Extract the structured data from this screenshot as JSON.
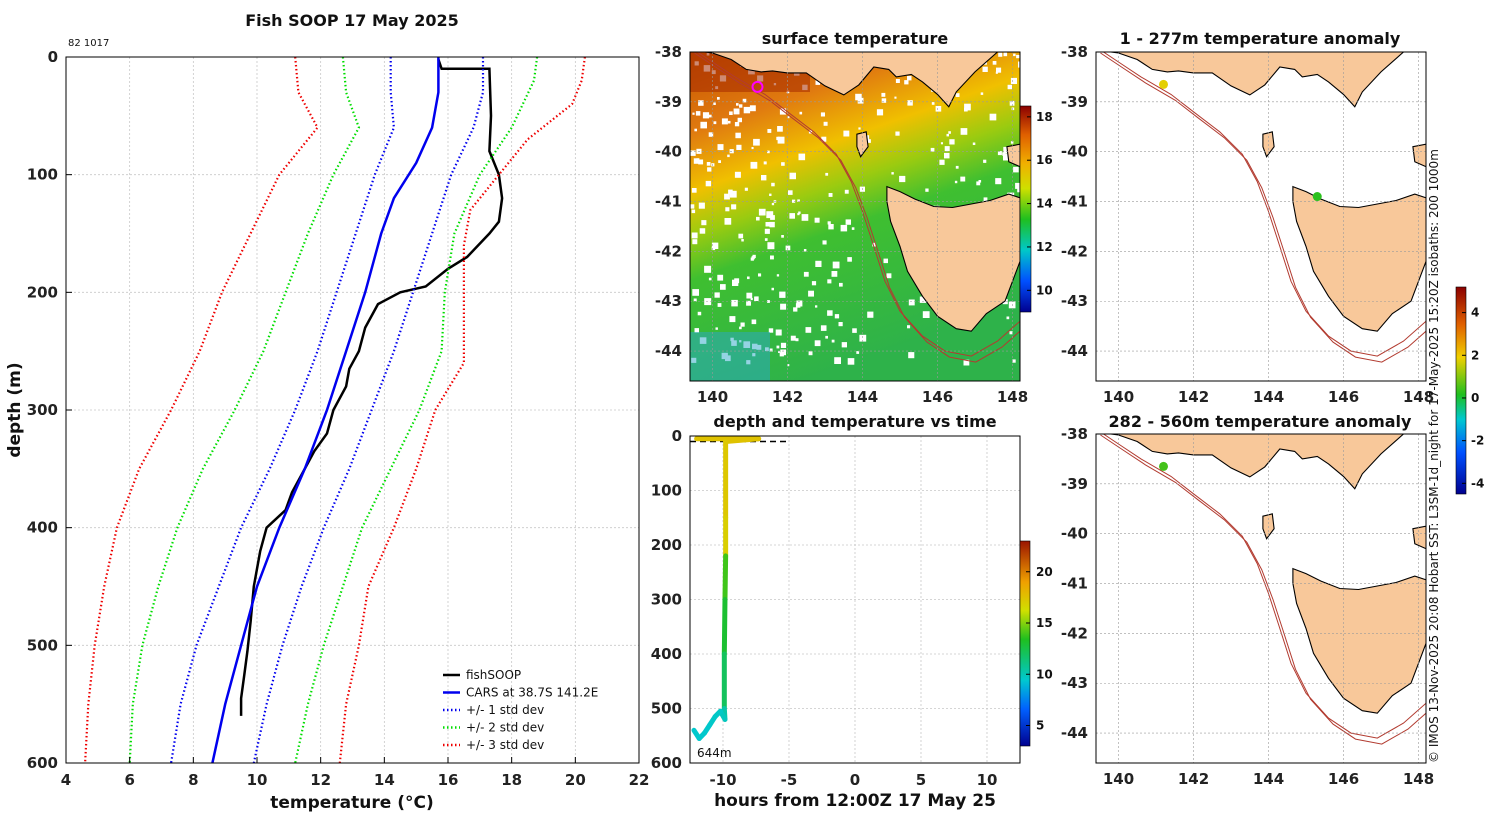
{
  "chart_data": [
    {
      "type": "line",
      "title": "Fish SOOP 17 May 2025",
      "id_label": "82 1017",
      "xlabel": "temperature (°C)",
      "ylabel": "depth (m)",
      "xlim": [
        4,
        22
      ],
      "ylim": [
        0,
        600
      ],
      "xticks": [
        4,
        6,
        8,
        10,
        12,
        14,
        16,
        18,
        20,
        22
      ],
      "yticks": [
        0,
        100,
        200,
        300,
        400,
        500,
        600
      ],
      "series": [
        {
          "name": "fishSOOP",
          "color": "#000000",
          "style": "solid",
          "points": [
            [
              15.7,
              2
            ],
            [
              15.8,
              10
            ],
            [
              17.3,
              10
            ],
            [
              17.35,
              50
            ],
            [
              17.3,
              80
            ],
            [
              17.6,
              100
            ],
            [
              17.7,
              120
            ],
            [
              17.6,
              140
            ],
            [
              17.3,
              150
            ],
            [
              16.6,
              170
            ],
            [
              16.0,
              180
            ],
            [
              15.3,
              195
            ],
            [
              14.5,
              200
            ],
            [
              13.8,
              210
            ],
            [
              13.4,
              230
            ],
            [
              13.2,
              250
            ],
            [
              12.9,
              265
            ],
            [
              12.8,
              280
            ],
            [
              12.4,
              300
            ],
            [
              12.2,
              320
            ],
            [
              11.8,
              335
            ],
            [
              11.4,
              355
            ],
            [
              11.1,
              370
            ],
            [
              10.9,
              385
            ],
            [
              10.3,
              400
            ],
            [
              10.1,
              420
            ],
            [
              9.9,
              450
            ],
            [
              9.8,
              480
            ],
            [
              9.7,
              505
            ],
            [
              9.6,
              525
            ],
            [
              9.5,
              545
            ],
            [
              9.5,
              560
            ]
          ]
        },
        {
          "name": "CARS at 38.7S 141.2E",
          "color": "#0000ee",
          "style": "solid",
          "points": [
            [
              15.7,
              0
            ],
            [
              15.7,
              30
            ],
            [
              15.5,
              60
            ],
            [
              15.0,
              90
            ],
            [
              14.3,
              120
            ],
            [
              13.9,
              150
            ],
            [
              13.4,
              200
            ],
            [
              12.8,
              250
            ],
            [
              12.2,
              300
            ],
            [
              11.5,
              350
            ],
            [
              10.7,
              400
            ],
            [
              10.0,
              450
            ],
            [
              9.5,
              500
            ],
            [
              9.0,
              550
            ],
            [
              8.6,
              600
            ]
          ]
        },
        {
          "name": "+/- 1 std dev",
          "color": "#0000ee",
          "style": "dotted",
          "points": [
            [
              14.2,
              0
            ],
            [
              14.2,
              30
            ],
            [
              14.3,
              60
            ],
            [
              13.7,
              100
            ],
            [
              13.1,
              150
            ],
            [
              12.5,
              200
            ],
            [
              11.9,
              250
            ],
            [
              11.2,
              300
            ],
            [
              10.4,
              350
            ],
            [
              9.5,
              400
            ],
            [
              8.8,
              450
            ],
            [
              8.1,
              500
            ],
            [
              7.6,
              550
            ],
            [
              7.3,
              600
            ]
          ]
        },
        {
          "name": "+/- 1 std dev",
          "color": "#0000ee",
          "style": "dotted",
          "points": [
            [
              17.1,
              0
            ],
            [
              17.1,
              30
            ],
            [
              16.8,
              60
            ],
            [
              16.1,
              100
            ],
            [
              15.5,
              150
            ],
            [
              14.9,
              200
            ],
            [
              14.3,
              250
            ],
            [
              13.6,
              300
            ],
            [
              12.9,
              350
            ],
            [
              12.1,
              400
            ],
            [
              11.4,
              450
            ],
            [
              10.8,
              500
            ],
            [
              10.3,
              550
            ],
            [
              9.9,
              600
            ]
          ]
        },
        {
          "name": "+/- 2 std dev",
          "color": "#00dd00",
          "style": "dotted",
          "points": [
            [
              12.7,
              0
            ],
            [
              12.8,
              30
            ],
            [
              13.2,
              60
            ],
            [
              12.4,
              100
            ],
            [
              11.6,
              150
            ],
            [
              10.9,
              200
            ],
            [
              10.2,
              250
            ],
            [
              9.3,
              300
            ],
            [
              8.3,
              350
            ],
            [
              7.5,
              400
            ],
            [
              6.9,
              450
            ],
            [
              6.4,
              500
            ],
            [
              6.1,
              550
            ],
            [
              6.0,
              600
            ]
          ]
        },
        {
          "name": "+/- 2 std dev",
          "color": "#00dd00",
          "style": "dotted",
          "points": [
            [
              18.8,
              0
            ],
            [
              18.7,
              20
            ],
            [
              18.0,
              60
            ],
            [
              17.0,
              100
            ],
            [
              16.2,
              150
            ],
            [
              15.9,
              200
            ],
            [
              15.8,
              250
            ],
            [
              15.1,
              300
            ],
            [
              14.2,
              350
            ],
            [
              13.3,
              400
            ],
            [
              12.7,
              450
            ],
            [
              12.1,
              500
            ],
            [
              11.6,
              550
            ],
            [
              11.2,
              600
            ]
          ]
        },
        {
          "name": "+/- 3 std dev",
          "color": "#ee0000",
          "style": "dotted",
          "points": [
            [
              11.2,
              0
            ],
            [
              11.3,
              30
            ],
            [
              11.9,
              60
            ],
            [
              10.7,
              100
            ],
            [
              9.8,
              150
            ],
            [
              8.9,
              200
            ],
            [
              8.2,
              250
            ],
            [
              7.3,
              300
            ],
            [
              6.3,
              350
            ],
            [
              5.6,
              400
            ],
            [
              5.2,
              450
            ],
            [
              4.9,
              500
            ],
            [
              4.7,
              550
            ],
            [
              4.6,
              600
            ]
          ]
        },
        {
          "name": "+/- 3 std dev",
          "color": "#ee0000",
          "style": "dotted",
          "points": [
            [
              20.3,
              0
            ],
            [
              20.2,
              20
            ],
            [
              19.9,
              40
            ],
            [
              18.5,
              70
            ],
            [
              17.6,
              100
            ],
            [
              16.7,
              130
            ],
            [
              16.5,
              160
            ],
            [
              16.5,
              190
            ],
            [
              16.5,
              220
            ],
            [
              16.5,
              260
            ],
            [
              15.6,
              300
            ],
            [
              15.0,
              350
            ],
            [
              14.3,
              400
            ],
            [
              13.5,
              450
            ],
            [
              13.2,
              500
            ],
            [
              12.8,
              550
            ],
            [
              12.6,
              600
            ]
          ]
        }
      ],
      "legend_entries": [
        "fishSOOP",
        "CARS at 38.7S 141.2E",
        "+/- 1 std dev",
        "+/- 2 std dev",
        "+/- 3 std dev"
      ],
      "legend_position": "bottom-right"
    },
    {
      "type": "heatmap",
      "title": "surface temperature",
      "xlim": [
        139.4,
        148.2
      ],
      "ylim": [
        -44.6,
        -38
      ],
      "xticks": [
        140,
        142,
        144,
        146,
        148
      ],
      "yticks": [
        -38,
        -39,
        -40,
        -41,
        -42,
        -43,
        -44
      ],
      "colorbar": {
        "min": 9,
        "max": 18.5,
        "ticks": [
          10,
          12,
          14,
          16,
          18
        ]
      },
      "marker": {
        "lon": 141.2,
        "lat": -38.7,
        "color": "#ff00ff"
      }
    },
    {
      "type": "line",
      "title": "depth and temperature vs time",
      "xlabel": "hours from 12:00Z 17 May 25",
      "xlim": [
        -12.5,
        12.5
      ],
      "ylim": [
        0,
        600
      ],
      "xticks": [
        -10,
        -5,
        0,
        5,
        10
      ],
      "yticks": [
        0,
        100,
        200,
        300,
        400,
        500,
        600
      ],
      "annotation": "644m",
      "colorbar": {
        "min": 3,
        "max": 23,
        "ticks": [
          5,
          10,
          15,
          20
        ]
      },
      "track": [
        [
          -12.0,
          5
        ],
        [
          -10.8,
          5
        ],
        [
          -9.9,
          5
        ],
        [
          -7.3,
          5
        ],
        [
          -9.8,
          10
        ],
        [
          -9.8,
          150
        ],
        [
          -9.8,
          220
        ],
        [
          -9.85,
          300
        ],
        [
          -9.9,
          400
        ],
        [
          -9.9,
          500
        ],
        [
          -9.85,
          520
        ],
        [
          -10.2,
          505
        ],
        [
          -10.6,
          515
        ],
        [
          -11.0,
          530
        ],
        [
          -11.4,
          545
        ],
        [
          -11.8,
          555
        ],
        [
          -12.2,
          540
        ]
      ],
      "track_temps": [
        17.5,
        17.5,
        17.5,
        17.5,
        17.3,
        17.0,
        13.9,
        13.0,
        12.0,
        10.3,
        9.8,
        9.6,
        9.6,
        9.5,
        9.5,
        9.5,
        9.5
      ]
    },
    {
      "type": "map",
      "title": "1 - 277m temperature anomaly",
      "xlim": [
        139.4,
        148.2
      ],
      "ylim": [
        -44.6,
        -38
      ],
      "xticks": [
        140,
        142,
        144,
        146,
        148
      ],
      "yticks": [
        -38,
        -39,
        -40,
        -41,
        -42,
        -43,
        -44
      ],
      "points": [
        {
          "lon": 141.2,
          "lat": -38.65,
          "anomaly": 1.8
        },
        {
          "lon": 145.3,
          "lat": -40.9,
          "anomaly": 0.3
        }
      ],
      "colorbar": {
        "min": -4.5,
        "max": 5.2,
        "ticks": [
          -4,
          -2,
          0,
          2,
          4
        ]
      }
    },
    {
      "type": "map",
      "title": "282 - 560m temperature anomaly",
      "xlim": [
        139.4,
        148.2
      ],
      "ylim": [
        -44.6,
        -38
      ],
      "xticks": [
        140,
        142,
        144,
        146,
        148
      ],
      "yticks": [
        -38,
        -39,
        -40,
        -41,
        -42,
        -43,
        -44
      ],
      "points": [
        {
          "lon": 141.2,
          "lat": -38.65,
          "anomaly": 0.5
        }
      ]
    }
  ],
  "side_caption": "© IMOS 13-Nov-2025 20:08 Hobart SST: L3SM-1d_night for 17-May-2025 15:20Z isobaths: 200  1000m",
  "colors": {
    "land": "#f8c89a",
    "isobath": "#b23b30",
    "coast": "#000000"
  }
}
